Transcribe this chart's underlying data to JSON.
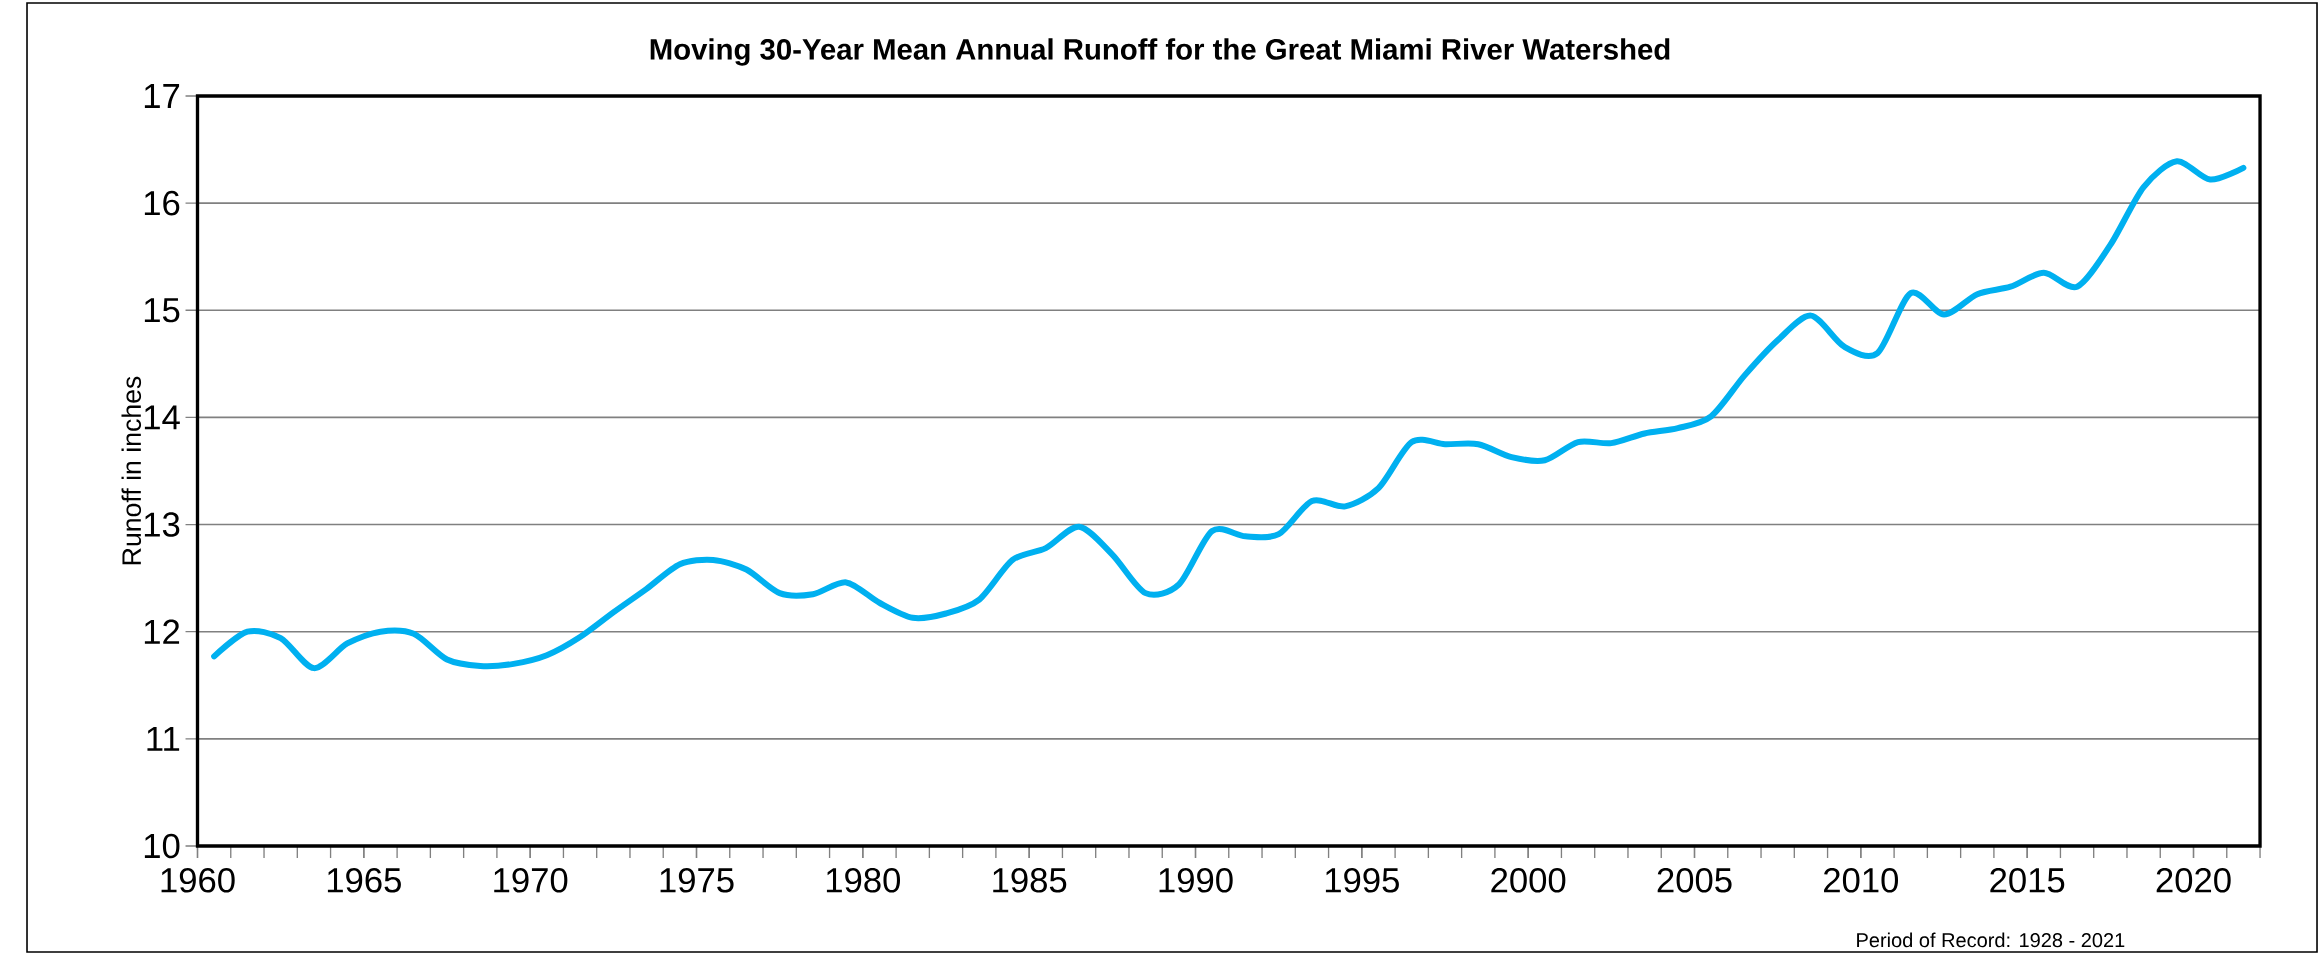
{
  "chart_data": {
    "type": "line",
    "title": "Moving 30-Year Mean Annual Runoff for the Great Miami River Watershed",
    "ylabel": "Runoff in inches",
    "annotations": [
      "Period of Record: 1928 - 2021"
    ],
    "x": [
      1960.5,
      1961.5,
      1962.5,
      1963.5,
      1964.5,
      1965.5,
      1966.5,
      1967.5,
      1968.5,
      1969.5,
      1970.5,
      1971.5,
      1972.5,
      1973.5,
      1974.5,
      1975.5,
      1976.5,
      1977.5,
      1978.5,
      1979.5,
      1980.5,
      1981.5,
      1982.5,
      1983.5,
      1984.5,
      1985.5,
      1986.5,
      1987.5,
      1988.5,
      1989.5,
      1990.5,
      1991.5,
      1992.5,
      1993.5,
      1994.5,
      1995.5,
      1996.5,
      1997.5,
      1998.5,
      1999.5,
      2000.5,
      2001.5,
      2002.5,
      2003.5,
      2004.5,
      2005.5,
      2006.5,
      2007.5,
      2008.5,
      2009.5,
      2010.5,
      2011.5,
      2012.5,
      2013.5,
      2014.5,
      2015.5,
      2016.5,
      2017.5,
      2018.5,
      2019.5,
      2020.5,
      2021.5
    ],
    "series": [
      {
        "color": "#00b0f0",
        "values": [
          11.77,
          12.0,
          11.94,
          11.66,
          11.89,
          12.0,
          11.98,
          11.74,
          11.68,
          11.7,
          11.78,
          11.95,
          12.18,
          12.4,
          12.63,
          12.67,
          12.58,
          12.36,
          12.35,
          12.46,
          12.27,
          12.13,
          12.17,
          12.3,
          12.67,
          12.78,
          12.98,
          12.72,
          12.36,
          12.44,
          12.94,
          12.89,
          12.91,
          13.22,
          13.17,
          13.34,
          13.77,
          13.75,
          13.75,
          13.63,
          13.6,
          13.77,
          13.76,
          13.85,
          13.9,
          14.01,
          14.39,
          14.72,
          14.95,
          14.66,
          14.6,
          15.16,
          14.96,
          15.15,
          15.22,
          15.35,
          15.22,
          15.61,
          16.15,
          16.39,
          16.22,
          16.33
        ]
      }
    ],
    "xlim": [
      1960,
      2022
    ],
    "ylim": [
      10,
      17
    ],
    "xticks": [
      1960,
      1965,
      1970,
      1975,
      1980,
      1985,
      1990,
      1995,
      2000,
      2005,
      2010,
      2015,
      2020
    ],
    "yticks": [
      10,
      11,
      12,
      13,
      14,
      15,
      16,
      17
    ],
    "grid": "y",
    "line_style": "solid"
  }
}
